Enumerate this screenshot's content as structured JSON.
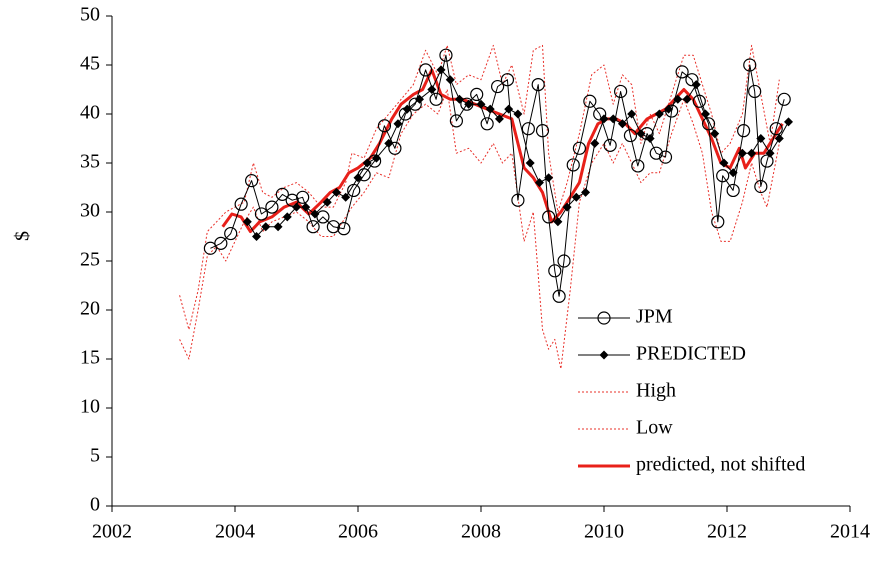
{
  "chart_data": {
    "type": "line",
    "ylabel": "$",
    "xlim": [
      2002,
      2014
    ],
    "xticks": [
      2002,
      2004,
      2006,
      2008,
      2010,
      2012,
      2014
    ],
    "ylim": [
      0,
      50
    ],
    "yticks": [
      0,
      5,
      10,
      15,
      20,
      25,
      30,
      35,
      40,
      45,
      50
    ],
    "legend": "lower right",
    "series": [
      {
        "name": "JPM",
        "color": "#000000",
        "marker": "circle",
        "style": "solid",
        "width": 1,
        "x": [
          2003.6,
          2003.77,
          2003.93,
          2004.1,
          2004.27,
          2004.43,
          2004.6,
          2004.77,
          2004.93,
          2005.1,
          2005.27,
          2005.43,
          2005.6,
          2005.77,
          2005.93,
          2006.1,
          2006.27,
          2006.43,
          2006.6,
          2006.77,
          2006.93,
          2007.1,
          2007.27,
          2007.43,
          2007.6,
          2007.77,
          2007.93,
          2008.1,
          2008.27,
          2008.43,
          2008.6,
          2008.77,
          2008.93,
          2009.0,
          2009.1,
          2009.2,
          2009.27,
          2009.35,
          2009.5,
          2009.6,
          2009.77,
          2009.93,
          2010.1,
          2010.27,
          2010.43,
          2010.55,
          2010.7,
          2010.85,
          2011.0,
          2011.1,
          2011.27,
          2011.43,
          2011.55,
          2011.7,
          2011.85,
          2011.93,
          2012.1,
          2012.27,
          2012.37,
          2012.45,
          2012.55,
          2012.65,
          2012.8,
          2012.93
        ],
        "values": [
          26.3,
          26.8,
          27.8,
          30.8,
          33.2,
          29.8,
          30.5,
          31.8,
          31.2,
          31.5,
          28.5,
          29.5,
          28.5,
          28.3,
          32.2,
          33.8,
          35.2,
          38.8,
          36.5,
          40,
          41,
          44.5,
          41.5,
          46,
          39.3,
          41,
          42,
          39,
          42.8,
          43.5,
          31.2,
          38.5,
          43,
          38.3,
          29.5,
          24,
          21.4,
          25,
          34.8,
          36.5,
          41.3,
          40,
          36.8,
          42.3,
          37.8,
          34.7,
          38,
          36,
          35.6,
          40.3,
          44.3,
          43.5,
          41.3,
          39,
          29,
          33.7,
          32.2,
          38.3,
          45,
          42.3,
          32.6,
          35.2,
          38.5,
          41.5
        ]
      },
      {
        "name": "PREDICTED",
        "color": "#000000",
        "marker": "diamond",
        "style": "solid",
        "width": 1,
        "x": [
          2004.2,
          2004.35,
          2004.5,
          2004.7,
          2004.85,
          2005.0,
          2005.15,
          2005.3,
          2005.5,
          2005.65,
          2005.8,
          2006.0,
          2006.15,
          2006.3,
          2006.5,
          2006.65,
          2006.8,
          2007.0,
          2007.2,
          2007.35,
          2007.5,
          2007.65,
          2007.8,
          2008.0,
          2008.15,
          2008.3,
          2008.45,
          2008.6,
          2008.8,
          2008.95,
          2009.1,
          2009.25,
          2009.4,
          2009.55,
          2009.7,
          2009.85,
          2010.0,
          2010.15,
          2010.3,
          2010.45,
          2010.6,
          2010.75,
          2010.9,
          2011.05,
          2011.2,
          2011.35,
          2011.5,
          2011.65,
          2011.8,
          2011.95,
          2012.1,
          2012.25,
          2012.4,
          2012.55,
          2012.7,
          2012.85,
          2013.0
        ],
        "values": [
          29,
          27.5,
          28.5,
          28.5,
          29.5,
          30.5,
          30.5,
          29.8,
          31,
          32,
          31.5,
          33.5,
          35,
          35.5,
          37,
          39,
          40.5,
          41.5,
          42.5,
          44.5,
          43.5,
          41.5,
          41,
          41,
          40.5,
          39.5,
          40.5,
          40,
          35,
          33,
          33.5,
          29,
          30.5,
          31.5,
          32,
          37,
          39.5,
          39.5,
          39,
          40,
          38,
          37.5,
          40,
          40.5,
          41.5,
          41.5,
          43,
          40,
          38,
          35,
          34,
          36,
          36,
          37.5,
          36,
          37.5,
          39.2
        ]
      },
      {
        "name": "High",
        "color": "#e8302a",
        "marker": "none",
        "style": "dotted",
        "width": 1,
        "x": [
          2003.1,
          2003.25,
          2003.4,
          2003.55,
          2003.7,
          2003.85,
          2004.0,
          2004.15,
          2004.3,
          2004.45,
          2004.6,
          2004.8,
          2005.0,
          2005.2,
          2005.4,
          2005.6,
          2005.8,
          2005.9,
          2006.1,
          2006.3,
          2006.5,
          2006.7,
          2006.9,
          2007.1,
          2007.3,
          2007.45,
          2007.6,
          2007.8,
          2008.0,
          2008.2,
          2008.35,
          2008.5,
          2008.7,
          2008.85,
          2009.0,
          2009.1,
          2009.25,
          2009.4,
          2009.6,
          2009.8,
          2010.0,
          2010.15,
          2010.3,
          2010.45,
          2010.6,
          2010.75,
          2010.9,
          2011.1,
          2011.3,
          2011.45,
          2011.6,
          2011.75,
          2011.9,
          2012.05,
          2012.25,
          2012.4,
          2012.55,
          2012.7,
          2012.85
        ],
        "values": [
          21.5,
          18,
          22,
          28,
          29,
          30,
          30.5,
          31,
          35,
          32,
          31.5,
          32.5,
          33,
          32,
          30.5,
          30.5,
          33,
          36,
          35.5,
          38.5,
          40,
          41.5,
          43,
          46.5,
          44,
          47,
          43,
          44,
          43.5,
          47,
          43,
          45,
          40,
          46.5,
          47,
          36,
          30,
          33,
          38,
          44,
          45,
          41,
          44,
          43,
          37,
          40,
          38,
          42,
          46,
          46,
          43,
          40,
          36,
          37,
          40,
          47,
          42,
          37,
          43.5
        ]
      },
      {
        "name": "Low",
        "color": "#e8302a",
        "marker": "none",
        "style": "dotted",
        "width": 1,
        "x": [
          2003.1,
          2003.25,
          2003.4,
          2003.55,
          2003.7,
          2003.85,
          2004.0,
          2004.15,
          2004.3,
          2004.45,
          2004.6,
          2004.8,
          2005.0,
          2005.2,
          2005.4,
          2005.6,
          2005.8,
          2005.9,
          2006.1,
          2006.3,
          2006.5,
          2006.7,
          2006.9,
          2007.1,
          2007.3,
          2007.45,
          2007.6,
          2007.8,
          2008.0,
          2008.2,
          2008.35,
          2008.5,
          2008.7,
          2008.85,
          2009.0,
          2009.1,
          2009.2,
          2009.3,
          2009.45,
          2009.6,
          2009.8,
          2010.0,
          2010.15,
          2010.3,
          2010.45,
          2010.6,
          2010.75,
          2010.9,
          2011.1,
          2011.3,
          2011.45,
          2011.6,
          2011.75,
          2011.9,
          2012.05,
          2012.25,
          2012.4,
          2012.55,
          2012.65,
          2012.85
        ],
        "values": [
          17,
          15,
          20,
          25.5,
          26.5,
          25,
          27,
          29,
          30.5,
          28,
          29,
          29.5,
          30,
          29,
          27.5,
          27.5,
          29.5,
          30.5,
          32,
          34,
          33.5,
          38,
          40,
          41,
          40,
          42.5,
          36,
          36.5,
          35,
          37,
          35,
          36,
          27,
          30,
          18,
          16,
          17,
          14,
          22,
          31,
          35,
          37,
          35,
          37,
          35,
          33,
          34,
          34,
          38,
          41.5,
          39,
          36,
          30,
          27,
          27,
          31,
          35,
          32,
          30.5,
          37
        ]
      },
      {
        "name": "predicted, not shifted",
        "color": "#e8201a",
        "marker": "none",
        "style": "solid",
        "width": 3,
        "x": [
          2003.8,
          2003.95,
          2004.1,
          2004.25,
          2004.4,
          2004.6,
          2004.8,
          2005.0,
          2005.2,
          2005.4,
          2005.55,
          2005.7,
          2005.85,
          2006.0,
          2006.2,
          2006.35,
          2006.55,
          2006.7,
          2006.9,
          2007.05,
          2007.2,
          2007.35,
          2007.5,
          2007.7,
          2007.9,
          2008.1,
          2008.3,
          2008.5,
          2008.7,
          2008.85,
          2009.0,
          2009.15,
          2009.3,
          2009.45,
          2009.6,
          2009.75,
          2009.9,
          2010.05,
          2010.2,
          2010.35,
          2010.5,
          2010.7,
          2010.85,
          2011.0,
          2011.15,
          2011.3,
          2011.45,
          2011.6,
          2011.75,
          2011.9,
          2012.05,
          2012.2,
          2012.3,
          2012.45,
          2012.6,
          2012.75,
          2012.9
        ],
        "values": [
          28.5,
          29.8,
          29.5,
          28,
          29,
          29.5,
          30.5,
          31,
          29.8,
          31,
          32,
          32.5,
          34,
          34.5,
          35.5,
          37,
          39.5,
          41,
          42,
          42.5,
          44.5,
          42,
          41.5,
          41.5,
          41,
          40.5,
          40,
          39.5,
          34.5,
          33.5,
          32,
          29,
          30,
          31.5,
          33,
          37,
          39,
          39.5,
          39.5,
          39,
          38,
          39.5,
          40,
          40.5,
          41.5,
          42.5,
          41.5,
          39.5,
          37.5,
          35,
          34.5,
          36.5,
          34.5,
          36,
          36,
          37.5,
          39
        ]
      }
    ]
  }
}
